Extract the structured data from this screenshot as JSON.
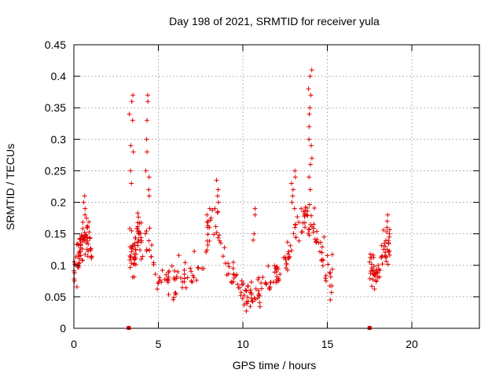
{
  "chart_data": {
    "type": "scatter",
    "title": "Day 198 of 2021, SRMTID for receiver yula",
    "xlabel": "GPS time / hours",
    "ylabel": "SRMTID / TECUs",
    "xlim": [
      0,
      24
    ],
    "ylim": [
      0,
      0.45
    ],
    "xticks": [
      0,
      5,
      10,
      15,
      20
    ],
    "xtick_labels": [
      "0",
      "5",
      "10",
      "15",
      "20"
    ],
    "yticks": [
      0,
      0.05,
      0.1,
      0.15,
      0.2,
      0.25,
      0.3,
      0.35,
      0.4,
      0.45
    ],
    "ytick_labels": [
      "0",
      "0.05",
      "0.1",
      "0.15",
      "0.2",
      "0.25",
      "0.3",
      "0.35",
      "0.4",
      "0.45"
    ],
    "grid": true,
    "marker": "plus",
    "color": "#e00000",
    "gap_markers_x": [
      3.25,
      17.5
    ],
    "series": [
      {
        "name": "SRMTID",
        "segments": [
          {
            "x_start": 0.0,
            "x_end": 1.05,
            "profile": [
              [
                0.0,
                0.09
              ],
              [
                0.3,
                0.12
              ],
              [
                0.6,
                0.15
              ],
              [
                0.9,
                0.15
              ],
              [
                1.05,
                0.11
              ]
            ],
            "spread": 0.035,
            "density": 70
          },
          {
            "x_start": 3.3,
            "x_end": 4.0,
            "profile": [
              [
                3.3,
                0.11
              ],
              [
                3.6,
                0.12
              ],
              [
                3.8,
                0.15
              ],
              [
                4.0,
                0.14
              ]
            ],
            "spread": 0.035,
            "density": 55
          },
          {
            "x_start": 4.0,
            "x_end": 9.0,
            "profile": [
              [
                4.0,
                0.14
              ],
              [
                4.5,
                0.13
              ],
              [
                4.8,
                0.09
              ],
              [
                5.5,
                0.08
              ],
              [
                6.0,
                0.07
              ],
              [
                6.5,
                0.08
              ],
              [
                7.0,
                0.09
              ],
              [
                7.5,
                0.11
              ],
              [
                8.0,
                0.15
              ],
              [
                8.5,
                0.17
              ],
              [
                9.0,
                0.1
              ]
            ],
            "spread": 0.03,
            "density": 90
          },
          {
            "x_start": 9.0,
            "x_end": 12.5,
            "profile": [
              [
                9.0,
                0.1
              ],
              [
                9.5,
                0.08
              ],
              [
                10.0,
                0.06
              ],
              [
                10.5,
                0.05
              ],
              [
                11.0,
                0.06
              ],
              [
                11.5,
                0.07
              ],
              [
                12.0,
                0.08
              ],
              [
                12.5,
                0.1
              ]
            ],
            "spread": 0.025,
            "density": 85
          },
          {
            "x_start": 12.5,
            "x_end": 15.3,
            "profile": [
              [
                12.5,
                0.1
              ],
              [
                13.0,
                0.14
              ],
              [
                13.5,
                0.17
              ],
              [
                14.0,
                0.17
              ],
              [
                14.5,
                0.13
              ],
              [
                15.0,
                0.09
              ],
              [
                15.3,
                0.08
              ]
            ],
            "spread": 0.035,
            "density": 80
          },
          {
            "x_start": 17.5,
            "x_end": 18.7,
            "profile": [
              [
                17.5,
                0.09
              ],
              [
                17.9,
                0.09
              ],
              [
                18.2,
                0.11
              ],
              [
                18.5,
                0.13
              ],
              [
                18.7,
                0.12
              ]
            ],
            "spread": 0.03,
            "density": 60
          }
        ],
        "spikes": [
          {
            "x": 0.55,
            "values": [
              0.21,
              0.2,
              0.19,
              0.18
            ]
          },
          {
            "x": 3.4,
            "values": [
              0.37,
              0.36,
              0.34,
              0.33,
              0.29,
              0.28,
              0.25,
              0.23
            ]
          },
          {
            "x": 4.35,
            "values": [
              0.37,
              0.36,
              0.33,
              0.3,
              0.28,
              0.25,
              0.24,
              0.22,
              0.21
            ]
          },
          {
            "x": 7.95,
            "values": [
              0.19,
              0.18,
              0.17,
              0.16
            ]
          },
          {
            "x": 8.45,
            "values": [
              0.235,
              0.22,
              0.21,
              0.2,
              0.19
            ]
          },
          {
            "x": 10.7,
            "values": [
              0.19,
              0.18,
              0.15,
              0.14
            ]
          },
          {
            "x": 13.0,
            "values": [
              0.25,
              0.24,
              0.23,
              0.22,
              0.21,
              0.2,
              0.19
            ]
          },
          {
            "x": 14.0,
            "values": [
              0.41,
              0.4,
              0.38,
              0.37,
              0.35,
              0.34,
              0.32,
              0.3,
              0.29,
              0.27,
              0.26,
              0.24,
              0.22
            ]
          },
          {
            "x": 18.6,
            "values": [
              0.18,
              0.17,
              0.16,
              0.15
            ]
          }
        ]
      }
    ]
  }
}
